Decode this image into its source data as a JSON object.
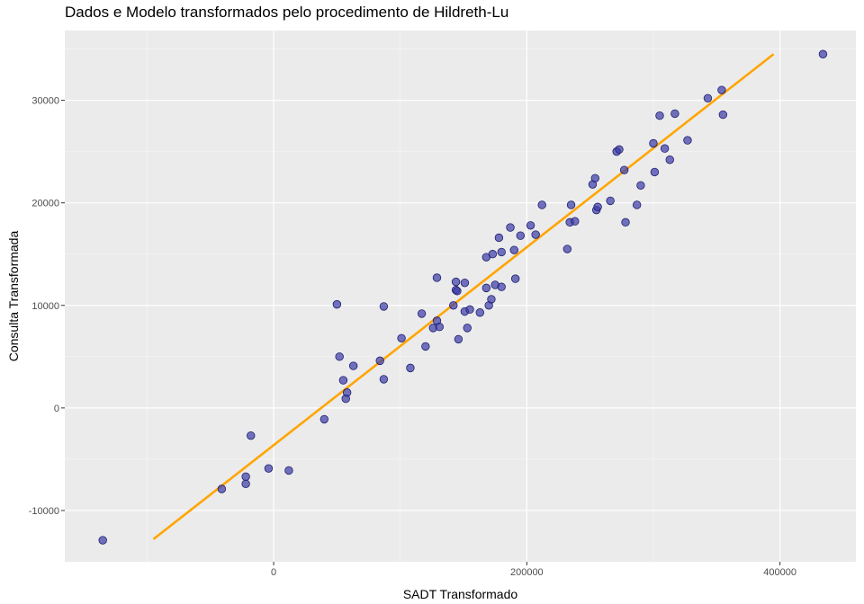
{
  "chart_data": {
    "type": "scatter",
    "title": "Dados e Modelo transformados pelo procedimento de Hildreth-Lu",
    "xlabel": "SADT Transformado",
    "ylabel": "Consulta Transformada",
    "xlim": [
      -165000,
      460000
    ],
    "ylim": [
      -15000,
      36800
    ],
    "x_ticks": [
      0,
      200000,
      400000
    ],
    "x_tick_labels": [
      "0",
      "200000",
      "400000"
    ],
    "y_ticks": [
      -10000,
      0,
      10000,
      20000,
      30000
    ],
    "y_tick_labels": [
      "-10000",
      "0",
      "10000",
      "20000",
      "30000"
    ],
    "grid": true,
    "background": "#ebebeb",
    "point_color": "#3b3ba8",
    "line_color": "#ffa500",
    "series": [
      {
        "type": "scatter",
        "points": [
          [
            -135000,
            -12900
          ],
          [
            -41000,
            -7900
          ],
          [
            -22000,
            -7400
          ],
          [
            -22000,
            -6700
          ],
          [
            -18000,
            -2700
          ],
          [
            -4000,
            -5900
          ],
          [
            12000,
            -6100
          ],
          [
            40000,
            -1100
          ],
          [
            50000,
            10100
          ],
          [
            52000,
            5000
          ],
          [
            55000,
            2700
          ],
          [
            57000,
            900
          ],
          [
            58000,
            1500
          ],
          [
            63000,
            4100
          ],
          [
            84000,
            4600
          ],
          [
            87000,
            2800
          ],
          [
            87000,
            9900
          ],
          [
            101000,
            6800
          ],
          [
            108000,
            3900
          ],
          [
            117000,
            9200
          ],
          [
            120000,
            6000
          ],
          [
            126000,
            7800
          ],
          [
            129000,
            8500
          ],
          [
            131000,
            7900
          ],
          [
            129000,
            12700
          ],
          [
            142000,
            10000
          ],
          [
            144000,
            11500
          ],
          [
            145000,
            11400
          ],
          [
            144000,
            12300
          ],
          [
            146000,
            6700
          ],
          [
            151000,
            9400
          ],
          [
            151000,
            12200
          ],
          [
            153000,
            7800
          ],
          [
            155000,
            9600
          ],
          [
            163000,
            9300
          ],
          [
            168000,
            14700
          ],
          [
            168000,
            11700
          ],
          [
            170000,
            10000
          ],
          [
            172000,
            10600
          ],
          [
            173000,
            15000
          ],
          [
            175000,
            12000
          ],
          [
            178000,
            16600
          ],
          [
            180000,
            15200
          ],
          [
            180000,
            11800
          ],
          [
            187000,
            17600
          ],
          [
            190000,
            15400
          ],
          [
            191000,
            12600
          ],
          [
            195000,
            16800
          ],
          [
            203000,
            17800
          ],
          [
            207000,
            16900
          ],
          [
            212000,
            19800
          ],
          [
            232000,
            15500
          ],
          [
            234000,
            18100
          ],
          [
            235000,
            19800
          ],
          [
            238000,
            18200
          ],
          [
            252000,
            21800
          ],
          [
            254000,
            22400
          ],
          [
            255000,
            19300
          ],
          [
            256000,
            19600
          ],
          [
            266000,
            20200
          ],
          [
            271000,
            25000
          ],
          [
            273000,
            25200
          ],
          [
            277000,
            23200
          ],
          [
            278000,
            18100
          ],
          [
            287000,
            19800
          ],
          [
            290000,
            21700
          ],
          [
            300000,
            25800
          ],
          [
            301000,
            23000
          ],
          [
            305000,
            28500
          ],
          [
            309000,
            25300
          ],
          [
            313000,
            24200
          ],
          [
            317000,
            28700
          ],
          [
            327000,
            26100
          ],
          [
            343000,
            30200
          ],
          [
            354000,
            31000
          ],
          [
            355000,
            28600
          ],
          [
            434000,
            34500
          ]
        ]
      },
      {
        "type": "line",
        "points": [
          [
            -95000,
            -12800
          ],
          [
            395000,
            34500
          ]
        ]
      }
    ]
  }
}
